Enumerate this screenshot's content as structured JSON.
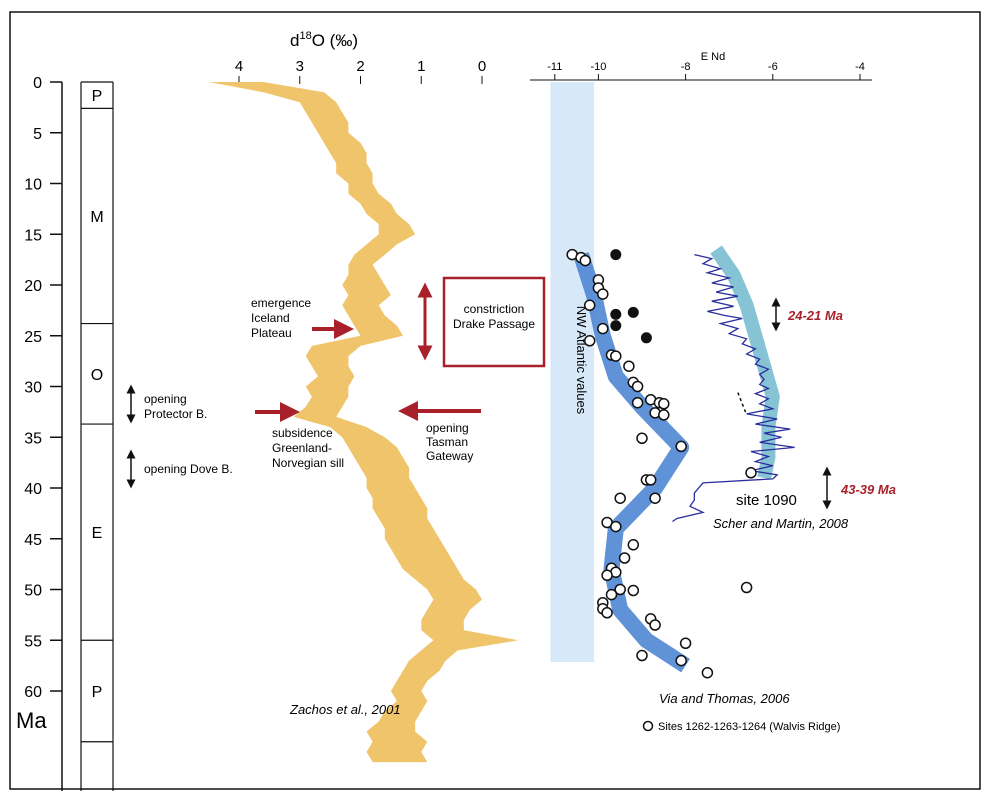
{
  "chart_data": [
    {
      "type": "line",
      "title": "",
      "xlabel": "d18O (‰)",
      "xlabel_main": "d",
      "xlabel_sup": "18",
      "xlabel_tail": "O (‰)",
      "xlim": [
        4.5,
        0
      ],
      "x_ticks": [
        "4",
        "3",
        "2",
        "1",
        "0"
      ],
      "x_tick_values": [
        4,
        3,
        2,
        1,
        0
      ],
      "ylabel": "Ma",
      "ylim": [
        0,
        67
      ],
      "y_ticks": [
        "0",
        "5",
        "10",
        "15",
        "20",
        "25",
        "30",
        "35",
        "40",
        "45",
        "50",
        "55",
        "60"
      ],
      "y_tick_values": [
        0,
        5,
        10,
        15,
        20,
        25,
        30,
        35,
        40,
        45,
        50,
        55,
        60
      ],
      "band_color": "#f0c46a",
      "series": [
        {
          "name": "",
          "points": [
            [
              0,
              4.5,
              3.6
            ],
            [
              1,
              3.6,
              2.6
            ],
            [
              2,
              3.0,
              2.4
            ],
            [
              3,
              2.9,
              2.3
            ],
            [
              4,
              2.8,
              2.2
            ],
            [
              5,
              2.7,
              2.2
            ],
            [
              6,
              2.6,
              2.0
            ],
            [
              7,
              2.5,
              1.9
            ],
            [
              8,
              2.4,
              1.9
            ],
            [
              9,
              2.4,
              1.8
            ],
            [
              10,
              2.2,
              1.8
            ],
            [
              11,
              2.2,
              1.7
            ],
            [
              12,
              2.0,
              1.5
            ],
            [
              13,
              1.9,
              1.4
            ],
            [
              14,
              1.7,
              1.2
            ],
            [
              15,
              1.7,
              1.1
            ],
            [
              16,
              1.9,
              1.4
            ],
            [
              17,
              2.1,
              1.6
            ],
            [
              18,
              2.2,
              1.8
            ],
            [
              19,
              2.2,
              1.7
            ],
            [
              20,
              2.3,
              1.6
            ],
            [
              21,
              2.2,
              1.5
            ],
            [
              22,
              2.3,
              1.7
            ],
            [
              23,
              2.2,
              1.6
            ],
            [
              24,
              2.1,
              1.4
            ],
            [
              25,
              2.0,
              1.3
            ],
            [
              26,
              2.8,
              2.0
            ],
            [
              27,
              2.9,
              2.2
            ],
            [
              28,
              2.8,
              2.2
            ],
            [
              29,
              2.7,
              2.1
            ],
            [
              30,
              2.9,
              2.2
            ],
            [
              31,
              2.8,
              2.2
            ],
            [
              32,
              2.9,
              2.3
            ],
            [
              33,
              3.1,
              2.4
            ],
            [
              34,
              2.5,
              1.9
            ],
            [
              35,
              2.3,
              1.6
            ],
            [
              36,
              2.2,
              1.4
            ],
            [
              37,
              2.1,
              1.3
            ],
            [
              38,
              2.0,
              1.2
            ],
            [
              39,
              1.9,
              1.2
            ],
            [
              40,
              1.9,
              1.1
            ],
            [
              41,
              1.8,
              1.0
            ],
            [
              42,
              1.8,
              0.9
            ],
            [
              43,
              1.7,
              0.9
            ],
            [
              44,
              1.6,
              0.8
            ],
            [
              45,
              1.6,
              0.7
            ],
            [
              46,
              1.5,
              0.6
            ],
            [
              47,
              1.4,
              0.5
            ],
            [
              48,
              1.3,
              0.4
            ],
            [
              49,
              1.1,
              0.3
            ],
            [
              50,
              0.9,
              0.1
            ],
            [
              51,
              0.8,
              0.0
            ],
            [
              52,
              0.9,
              0.2
            ],
            [
              53,
              1.0,
              0.3
            ],
            [
              54,
              1.0,
              0.3
            ],
            [
              55,
              0.8,
              -0.6
            ],
            [
              56,
              1.0,
              0.4
            ],
            [
              57,
              1.2,
              0.6
            ],
            [
              58,
              1.3,
              0.7
            ],
            [
              59,
              1.4,
              0.9
            ],
            [
              60,
              1.5,
              1.0
            ],
            [
              61,
              1.4,
              0.9
            ],
            [
              62,
              1.6,
              1.0
            ],
            [
              63,
              1.7,
              1.1
            ],
            [
              64,
              1.9,
              1.1
            ],
            [
              65,
              1.8,
              0.9
            ],
            [
              66,
              1.9,
              1.0
            ],
            [
              67,
              1.8,
              0.9
            ]
          ]
        }
      ],
      "epochs": [
        {
          "label": "P",
          "from": 0,
          "to": 2.6
        },
        {
          "label": "M",
          "from": 2.6,
          "to": 23.8
        },
        {
          "label": "O",
          "from": 23.8,
          "to": 33.7
        },
        {
          "label": "E",
          "from": 33.7,
          "to": 55
        },
        {
          "label": "P",
          "from": 55,
          "to": 65
        }
      ],
      "annotations": {
        "emergence": [
          "emergence",
          "Iceland",
          "Plateau"
        ],
        "constriction": [
          "constriction",
          "Drake Passage"
        ],
        "protector": [
          "opening",
          "Protector B."
        ],
        "dove": [
          "opening Dove B."
        ],
        "subsidence": [
          "subsidence",
          "Greenland-",
          "Norvegian sill"
        ],
        "tasman": [
          "opening",
          "Tasman",
          "Gateway"
        ],
        "citation": "Zachos et al., 2001"
      },
      "colors": {
        "arrow_red": "#a8202a",
        "box_red": "#a8202a"
      }
    },
    {
      "type": "scatter",
      "title": "",
      "xlabel": "E Nd",
      "xlim": [
        -11.3,
        -4
      ],
      "x_ticks": [
        "-11",
        "-10",
        "-8",
        "-6",
        "-4"
      ],
      "x_tick_values": [
        -11,
        -10,
        -8,
        -6,
        -4
      ],
      "ylim": [
        0,
        67
      ],
      "nw_band": {
        "label": "NW Atlantic values",
        "from": -11.1,
        "to": -10.1,
        "color": "#d7e9f8"
      },
      "series": [
        {
          "name": "Sites 1262-1263-1264 (Walvis Ridge)",
          "marker": "open-circle",
          "points": [
            [
              -10.6,
              17.0
            ],
            [
              -10.4,
              17.3
            ],
            [
              -10.3,
              17.6
            ],
            [
              -10.0,
              19.5
            ],
            [
              -10.0,
              20.3
            ],
            [
              -9.9,
              20.9
            ],
            [
              -10.2,
              22.0
            ],
            [
              -9.9,
              24.3
            ],
            [
              -10.2,
              25.5
            ],
            [
              -9.7,
              26.9
            ],
            [
              -9.6,
              27.0
            ],
            [
              -9.3,
              28.0
            ],
            [
              -9.2,
              29.6
            ],
            [
              -9.1,
              30.0
            ],
            [
              -9.1,
              31.6
            ],
            [
              -8.8,
              31.3
            ],
            [
              -8.6,
              31.6
            ],
            [
              -8.5,
              31.7
            ],
            [
              -8.7,
              32.6
            ],
            [
              -8.5,
              32.8
            ],
            [
              -9.0,
              35.1
            ],
            [
              -8.1,
              35.9
            ],
            [
              -8.9,
              39.2
            ],
            [
              -8.8,
              39.2
            ],
            [
              -8.7,
              41.0
            ],
            [
              -9.5,
              41.0
            ],
            [
              -9.8,
              43.4
            ],
            [
              -9.6,
              43.8
            ],
            [
              -9.2,
              45.6
            ],
            [
              -9.4,
              46.9
            ],
            [
              -9.7,
              47.9
            ],
            [
              -9.6,
              48.3
            ],
            [
              -9.8,
              48.6
            ],
            [
              -9.5,
              50.0
            ],
            [
              -9.2,
              50.1
            ],
            [
              -9.7,
              50.5
            ],
            [
              -9.9,
              51.3
            ],
            [
              -9.9,
              51.9
            ],
            [
              -9.8,
              52.3
            ],
            [
              -8.8,
              52.9
            ],
            [
              -8.7,
              53.5
            ],
            [
              -8.0,
              55.3
            ],
            [
              -9.0,
              56.5
            ],
            [
              -8.1,
              57.0
            ],
            [
              -7.5,
              58.2
            ],
            [
              -6.6,
              49.8
            ]
          ]
        },
        {
          "name": "",
          "marker": "filled-circle",
          "points": [
            [
              -9.6,
              17.0
            ],
            [
              -9.2,
              22.7
            ],
            [
              -9.6,
              22.9
            ],
            [
              -9.6,
              24.0
            ],
            [
              -8.9,
              25.2
            ]
          ]
        }
      ],
      "trend_band": {
        "color": "#4f86d4",
        "points": [
          [
            -10.4,
            17
          ],
          [
            -10.1,
            21
          ],
          [
            -9.9,
            25
          ],
          [
            -9.6,
            29
          ],
          [
            -9.0,
            32
          ],
          [
            -8.1,
            36
          ],
          [
            -8.7,
            40
          ],
          [
            -9.6,
            44
          ],
          [
            -9.7,
            48
          ],
          [
            -9.5,
            52
          ],
          [
            -8.9,
            55
          ],
          [
            -8.0,
            57.5
          ]
        ]
      },
      "site1090": {
        "label": "site 1090",
        "citation": "Scher and Martin, 2008",
        "band_color": "#86c3d4",
        "line_color": "#2b2f9e",
        "band": [
          [
            -7.3,
            16.5
          ],
          [
            -6.9,
            19
          ],
          [
            -6.6,
            22
          ],
          [
            -6.4,
            25
          ],
          [
            -6.2,
            28
          ],
          [
            -6.0,
            31
          ],
          [
            -6.1,
            34
          ],
          [
            -6.1,
            37
          ],
          [
            -6.2,
            39
          ]
        ],
        "line": [
          [
            -7.8,
            17.0
          ],
          [
            -7.4,
            17.4
          ],
          [
            -7.6,
            17.9
          ],
          [
            -7.2,
            18.4
          ],
          [
            -7.5,
            18.8
          ],
          [
            -7.0,
            19.3
          ],
          [
            -7.4,
            19.8
          ],
          [
            -6.9,
            20.2
          ],
          [
            -7.3,
            20.7
          ],
          [
            -6.8,
            21.1
          ],
          [
            -7.4,
            21.6
          ],
          [
            -6.9,
            22.1
          ],
          [
            -7.5,
            22.6
          ],
          [
            -7.1,
            23.0
          ],
          [
            -6.7,
            23.3
          ],
          [
            -7.2,
            23.8
          ],
          [
            -6.8,
            24.3
          ],
          [
            -7.0,
            24.8
          ],
          [
            -6.6,
            25.3
          ],
          [
            -6.7,
            25.8
          ],
          [
            -6.4,
            26.3
          ],
          [
            -6.6,
            26.8
          ],
          [
            -6.3,
            27.3
          ],
          [
            -6.4,
            27.8
          ],
          [
            -6.1,
            28.3
          ],
          [
            -6.3,
            28.8
          ],
          [
            -6.2,
            29.3
          ],
          [
            -6.3,
            29.8
          ],
          [
            -6.1,
            30.2
          ],
          [
            -6.4,
            30.7
          ],
          [
            -6.1,
            31.2
          ],
          [
            -6.3,
            31.7
          ],
          [
            -6.0,
            32.2
          ],
          [
            -6.6,
            32.7
          ],
          [
            -5.9,
            33.2
          ],
          [
            -6.4,
            33.7
          ],
          [
            -5.6,
            34.2
          ],
          [
            -6.2,
            34.6
          ],
          [
            -5.8,
            35.0
          ],
          [
            -6.3,
            35.5
          ],
          [
            -5.5,
            36.0
          ],
          [
            -6.5,
            36.4
          ],
          [
            -6.1,
            36.9
          ],
          [
            -6.4,
            37.4
          ],
          [
            -6.0,
            37.8
          ],
          [
            -6.5,
            38.3
          ],
          [
            -5.9,
            38.7
          ],
          [
            -6.0,
            39.1
          ],
          [
            -7.6,
            39.5
          ],
          [
            -7.8,
            40.5
          ],
          [
            -7.8,
            41.2
          ],
          [
            -7.9,
            41.8
          ],
          [
            -7.6,
            42.4
          ],
          [
            -8.2,
            43.0
          ],
          [
            -8.3,
            43.3
          ]
        ],
        "dashed": [
          [
            -6.8,
            30.6
          ],
          [
            -6.6,
            32.8
          ]
        ],
        "open_point": [
          -6.5,
          38.5
        ]
      },
      "annotations": {
        "range_a": "24-21 Ma",
        "range_b": "43-39 Ma",
        "citation": "Via and Thomas, 2006"
      },
      "colors": {
        "range_red": "#a8202a"
      }
    }
  ]
}
